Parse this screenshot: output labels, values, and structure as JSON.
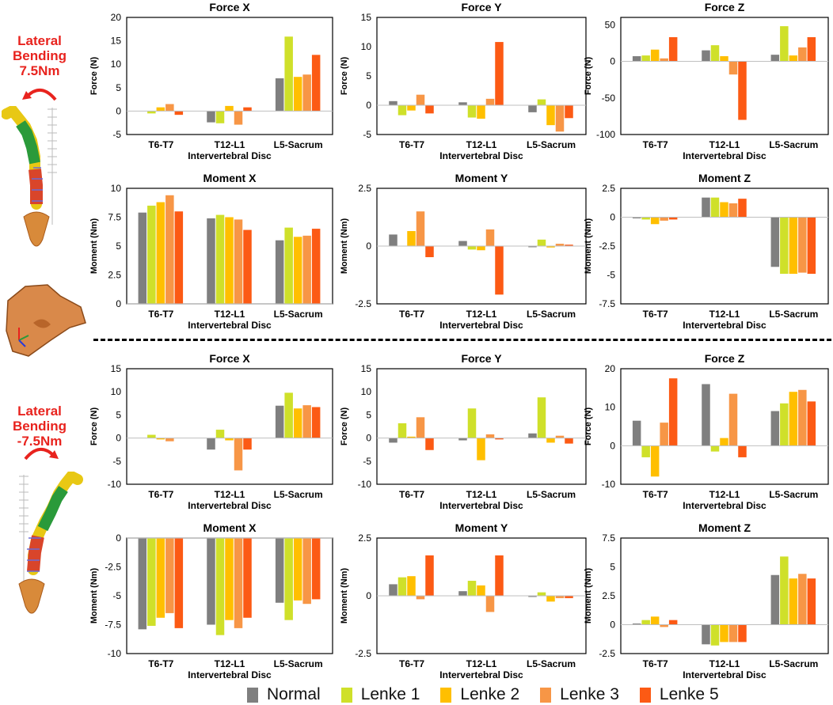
{
  "colors": {
    "Normal": "#7f7f7f",
    "Lenke 1": "#cfe02a",
    "Lenke 2": "#ffbf00",
    "Lenke 3": "#f79646",
    "Lenke 5": "#fc5a14",
    "label_red": "#e8231e"
  },
  "labels": {
    "top_line1": "Lateral",
    "top_line2": "Bending",
    "top_line3": "7.5Nm",
    "bottom_line1": "Lateral",
    "bottom_line2": "Bending",
    "bottom_line3": "-7.5Nm"
  },
  "icons": {
    "top_arrow": "curved-arrow-left-icon",
    "bottom_arrow": "curved-arrow-right-icon",
    "spine_top": "spine-model-icon",
    "spine_bottom": "spine-model-icon",
    "sacrum": "sacrum-model-icon"
  },
  "legend": {
    "items": [
      {
        "name": "Normal",
        "color": "#7f7f7f"
      },
      {
        "name": "Lenke 1",
        "color": "#cfe02a"
      },
      {
        "name": "Lenke 2",
        "color": "#ffbf00"
      },
      {
        "name": "Lenke 3",
        "color": "#f79646"
      },
      {
        "name": "Lenke 5",
        "color": "#fc5a14"
      }
    ]
  },
  "chart_data": [
    {
      "type": "bar",
      "title": "Force X",
      "xlabel": "Intervertebral Disc",
      "ylabel": "Force (N)",
      "ylim": [
        -5,
        20
      ],
      "yticks": [
        -5,
        0,
        5,
        10,
        15,
        20
      ],
      "ytick_labels": [
        "-5",
        "0",
        "5",
        "10",
        "15",
        "20"
      ],
      "categories": [
        "T6-T7",
        "T12-L1",
        "L5-Sacrum"
      ],
      "series": [
        {
          "name": "Normal",
          "values": [
            0,
            -2.4,
            7.0
          ]
        },
        {
          "name": "Lenke 1",
          "values": [
            -0.5,
            -2.6,
            15.9
          ]
        },
        {
          "name": "Lenke 2",
          "values": [
            0.8,
            1.1,
            7.3
          ]
        },
        {
          "name": "Lenke 3",
          "values": [
            1.5,
            -2.9,
            7.8
          ]
        },
        {
          "name": "Lenke 5",
          "values": [
            -0.8,
            0.8,
            12.0
          ]
        }
      ]
    },
    {
      "type": "bar",
      "title": "Force Y",
      "xlabel": "Intervertebral Disc",
      "ylabel": "Force (N)",
      "ylim": [
        -5,
        15
      ],
      "yticks": [
        -5,
        0,
        5,
        10,
        15
      ],
      "ytick_labels": [
        "-5",
        "0",
        "5",
        "10",
        "15"
      ],
      "categories": [
        "T6-T7",
        "T12-L1",
        "L5-Sacrum"
      ],
      "series": [
        {
          "name": "Normal",
          "values": [
            0.7,
            0.5,
            -1.2
          ]
        },
        {
          "name": "Lenke 1",
          "values": [
            -1.7,
            -2.1,
            1.0
          ]
        },
        {
          "name": "Lenke 2",
          "values": [
            -0.9,
            -2.3,
            -3.4
          ]
        },
        {
          "name": "Lenke 3",
          "values": [
            1.8,
            1.1,
            -4.5
          ]
        },
        {
          "name": "Lenke 5",
          "values": [
            -1.4,
            10.8,
            -2.2
          ]
        }
      ]
    },
    {
      "type": "bar",
      "title": "Force Z",
      "xlabel": "Intervertebral Disc",
      "ylabel": "Force (N)",
      "ylim": [
        -100,
        60
      ],
      "yticks": [
        -100,
        -50,
        0,
        50
      ],
      "ytick_labels": [
        "-100",
        "-50",
        "0",
        "50"
      ],
      "categories": [
        "T6-T7",
        "T12-L1",
        "L5-Sacrum"
      ],
      "series": [
        {
          "name": "Normal",
          "values": [
            7,
            15,
            9
          ]
        },
        {
          "name": "Lenke 1",
          "values": [
            8,
            22,
            48
          ]
        },
        {
          "name": "Lenke 2",
          "values": [
            16,
            7,
            8
          ]
        },
        {
          "name": "Lenke 3",
          "values": [
            4,
            -18,
            19
          ]
        },
        {
          "name": "Lenke 5",
          "values": [
            33,
            -80,
            33
          ]
        }
      ]
    },
    {
      "type": "bar",
      "title": "Moment X",
      "xlabel": "Intervertebral Disc",
      "ylabel": "Moment (Nm)",
      "ylim": [
        0,
        10
      ],
      "yticks": [
        0,
        2.5,
        5,
        7.5,
        10
      ],
      "ytick_labels": [
        "0",
        "2.5",
        "5",
        "7.5",
        "10"
      ],
      "categories": [
        "T6-T7",
        "T12-L1",
        "L5-Sacrum"
      ],
      "series": [
        {
          "name": "Normal",
          "values": [
            7.9,
            7.4,
            5.5
          ]
        },
        {
          "name": "Lenke 1",
          "values": [
            8.5,
            7.7,
            6.6
          ]
        },
        {
          "name": "Lenke 2",
          "values": [
            8.8,
            7.5,
            5.8
          ]
        },
        {
          "name": "Lenke 3",
          "values": [
            9.4,
            7.3,
            5.9
          ]
        },
        {
          "name": "Lenke 5",
          "values": [
            8.0,
            6.4,
            6.5
          ]
        }
      ]
    },
    {
      "type": "bar",
      "title": "Moment Y",
      "xlabel": "Intervertebral Disc",
      "ylabel": "Moment (Nm)",
      "ylim": [
        -2.5,
        2.5
      ],
      "yticks": [
        -2.5,
        0,
        2.5
      ],
      "ytick_labels": [
        "-2.5",
        "0",
        "2.5"
      ],
      "categories": [
        "T6-T7",
        "T12-L1",
        "L5-Sacrum"
      ],
      "series": [
        {
          "name": "Normal",
          "values": [
            0.5,
            0.22,
            -0.05
          ]
        },
        {
          "name": "Lenke 1",
          "values": [
            0.0,
            -0.15,
            0.28
          ]
        },
        {
          "name": "Lenke 2",
          "values": [
            0.65,
            -0.18,
            -0.06
          ]
        },
        {
          "name": "Lenke 3",
          "values": [
            1.5,
            0.72,
            0.1
          ]
        },
        {
          "name": "Lenke 5",
          "values": [
            -0.48,
            -2.1,
            0.06
          ]
        }
      ]
    },
    {
      "type": "bar",
      "title": "Moment Z",
      "xlabel": "Intervertebral Disc",
      "ylabel": "Moment (Nm)",
      "ylim": [
        -7.5,
        2.5
      ],
      "yticks": [
        -7.5,
        -5,
        -2.5,
        0,
        2.5
      ],
      "ytick_labels": [
        "-7.5",
        "-5",
        "-2.5",
        "0",
        "2.5"
      ],
      "categories": [
        "T6-T7",
        "T12-L1",
        "L5-Sacrum"
      ],
      "series": [
        {
          "name": "Normal",
          "values": [
            -0.1,
            1.7,
            -4.3
          ]
        },
        {
          "name": "Lenke 1",
          "values": [
            -0.2,
            1.7,
            -4.9
          ]
        },
        {
          "name": "Lenke 2",
          "values": [
            -0.6,
            1.3,
            -4.9
          ]
        },
        {
          "name": "Lenke 3",
          "values": [
            -0.3,
            1.2,
            -4.8
          ]
        },
        {
          "name": "Lenke 5",
          "values": [
            -0.2,
            1.6,
            -4.9
          ]
        }
      ]
    },
    {
      "type": "bar",
      "title": "Force X",
      "xlabel": "Intervertebral Disc",
      "ylabel": "Force (N)",
      "ylim": [
        -10,
        15
      ],
      "yticks": [
        -10,
        -5,
        0,
        5,
        10,
        15
      ],
      "ytick_labels": [
        "-10",
        "-5",
        "0",
        "5",
        "10",
        "15"
      ],
      "categories": [
        "T6-T7",
        "T12-L1",
        "L5-Sacrum"
      ],
      "series": [
        {
          "name": "Normal",
          "values": [
            0,
            -2.5,
            7.0
          ]
        },
        {
          "name": "Lenke 1",
          "values": [
            0.7,
            1.8,
            9.8
          ]
        },
        {
          "name": "Lenke 2",
          "values": [
            -0.3,
            -0.5,
            6.4
          ]
        },
        {
          "name": "Lenke 3",
          "values": [
            -0.7,
            -7.0,
            7.1
          ]
        },
        {
          "name": "Lenke 5",
          "values": [
            0,
            -2.5,
            6.7
          ]
        }
      ]
    },
    {
      "type": "bar",
      "title": "Force Y",
      "xlabel": "Intervertebral Disc",
      "ylabel": "Force (N)",
      "ylim": [
        -10,
        15
      ],
      "yticks": [
        -10,
        -5,
        0,
        5,
        10,
        15
      ],
      "ytick_labels": [
        "-10",
        "-5",
        "0",
        "5",
        "10",
        "15"
      ],
      "categories": [
        "T6-T7",
        "T12-L1",
        "L5-Sacrum"
      ],
      "series": [
        {
          "name": "Normal",
          "values": [
            -1.0,
            -0.5,
            1.0
          ]
        },
        {
          "name": "Lenke 1",
          "values": [
            3.2,
            6.4,
            8.8
          ]
        },
        {
          "name": "Lenke 2",
          "values": [
            0.3,
            -4.8,
            -1.0
          ]
        },
        {
          "name": "Lenke 3",
          "values": [
            4.5,
            0.8,
            0.5
          ]
        },
        {
          "name": "Lenke 5",
          "values": [
            -2.6,
            -0.3,
            -1.2
          ]
        }
      ]
    },
    {
      "type": "bar",
      "title": "Force Z",
      "xlabel": "Intervertebral Disc",
      "ylabel": "Force (N)",
      "ylim": [
        -10,
        20
      ],
      "yticks": [
        -10,
        0,
        10,
        20
      ],
      "ytick_labels": [
        "-10",
        "0",
        "10",
        "20"
      ],
      "categories": [
        "T6-T7",
        "T12-L1",
        "L5-Sacrum"
      ],
      "series": [
        {
          "name": "Normal",
          "values": [
            6.5,
            16.0,
            9.0
          ]
        },
        {
          "name": "Lenke 1",
          "values": [
            -3.0,
            -1.5,
            11.0
          ]
        },
        {
          "name": "Lenke 2",
          "values": [
            -8.0,
            2.0,
            14.0
          ]
        },
        {
          "name": "Lenke 3",
          "values": [
            6.0,
            13.5,
            14.5
          ]
        },
        {
          "name": "Lenke 5",
          "values": [
            17.5,
            -3.0,
            11.5
          ]
        }
      ]
    },
    {
      "type": "bar",
      "title": "Moment X",
      "xlabel": "Intervertebral Disc",
      "ylabel": "Moment (Nm)",
      "ylim": [
        -10,
        0
      ],
      "yticks": [
        -10,
        -7.5,
        -5,
        -2.5,
        0
      ],
      "ytick_labels": [
        "-10",
        "-7.5",
        "-5",
        "-2.5",
        "0"
      ],
      "categories": [
        "T6-T7",
        "T12-L1",
        "L5-Sacrum"
      ],
      "series": [
        {
          "name": "Normal",
          "values": [
            -7.9,
            -7.5,
            -5.6
          ]
        },
        {
          "name": "Lenke 1",
          "values": [
            -7.6,
            -8.4,
            -7.1
          ]
        },
        {
          "name": "Lenke 2",
          "values": [
            -6.9,
            -7.1,
            -5.4
          ]
        },
        {
          "name": "Lenke 3",
          "values": [
            -6.5,
            -7.8,
            -5.7
          ]
        },
        {
          "name": "Lenke 5",
          "values": [
            -7.8,
            -6.9,
            -5.3
          ]
        }
      ]
    },
    {
      "type": "bar",
      "title": "Moment Y",
      "xlabel": "Intervertebral Disc",
      "ylabel": "Moment (Nm)",
      "ylim": [
        -2.5,
        2.5
      ],
      "yticks": [
        -2.5,
        0,
        2.5
      ],
      "ytick_labels": [
        "-2.5",
        "0",
        "2.5"
      ],
      "categories": [
        "T6-T7",
        "T12-L1",
        "L5-Sacrum"
      ],
      "series": [
        {
          "name": "Normal",
          "values": [
            0.5,
            0.2,
            -0.05
          ]
        },
        {
          "name": "Lenke 1",
          "values": [
            0.8,
            0.65,
            0.15
          ]
        },
        {
          "name": "Lenke 2",
          "values": [
            0.85,
            0.45,
            -0.25
          ]
        },
        {
          "name": "Lenke 3",
          "values": [
            -0.15,
            -0.7,
            -0.1
          ]
        },
        {
          "name": "Lenke 5",
          "values": [
            1.75,
            1.75,
            -0.1
          ]
        }
      ]
    },
    {
      "type": "bar",
      "title": "Moment Z",
      "xlabel": "Intervertebral Disc",
      "ylabel": "Moment (Nm)",
      "ylim": [
        -2.5,
        7.5
      ],
      "yticks": [
        -2.5,
        0,
        2.5,
        5,
        7.5
      ],
      "ytick_labels": [
        "-2.5",
        "0",
        "2.5",
        "5",
        "7.5"
      ],
      "categories": [
        "T6-T7",
        "T12-L1",
        "L5-Sacrum"
      ],
      "series": [
        {
          "name": "Normal",
          "values": [
            0.1,
            -1.7,
            4.3
          ]
        },
        {
          "name": "Lenke 1",
          "values": [
            0.4,
            -1.8,
            5.9
          ]
        },
        {
          "name": "Lenke 2",
          "values": [
            0.7,
            -1.5,
            4.0
          ]
        },
        {
          "name": "Lenke 3",
          "values": [
            -0.2,
            -1.5,
            4.4
          ]
        },
        {
          "name": "Lenke 5",
          "values": [
            0.4,
            -1.5,
            4.0
          ]
        }
      ]
    }
  ]
}
